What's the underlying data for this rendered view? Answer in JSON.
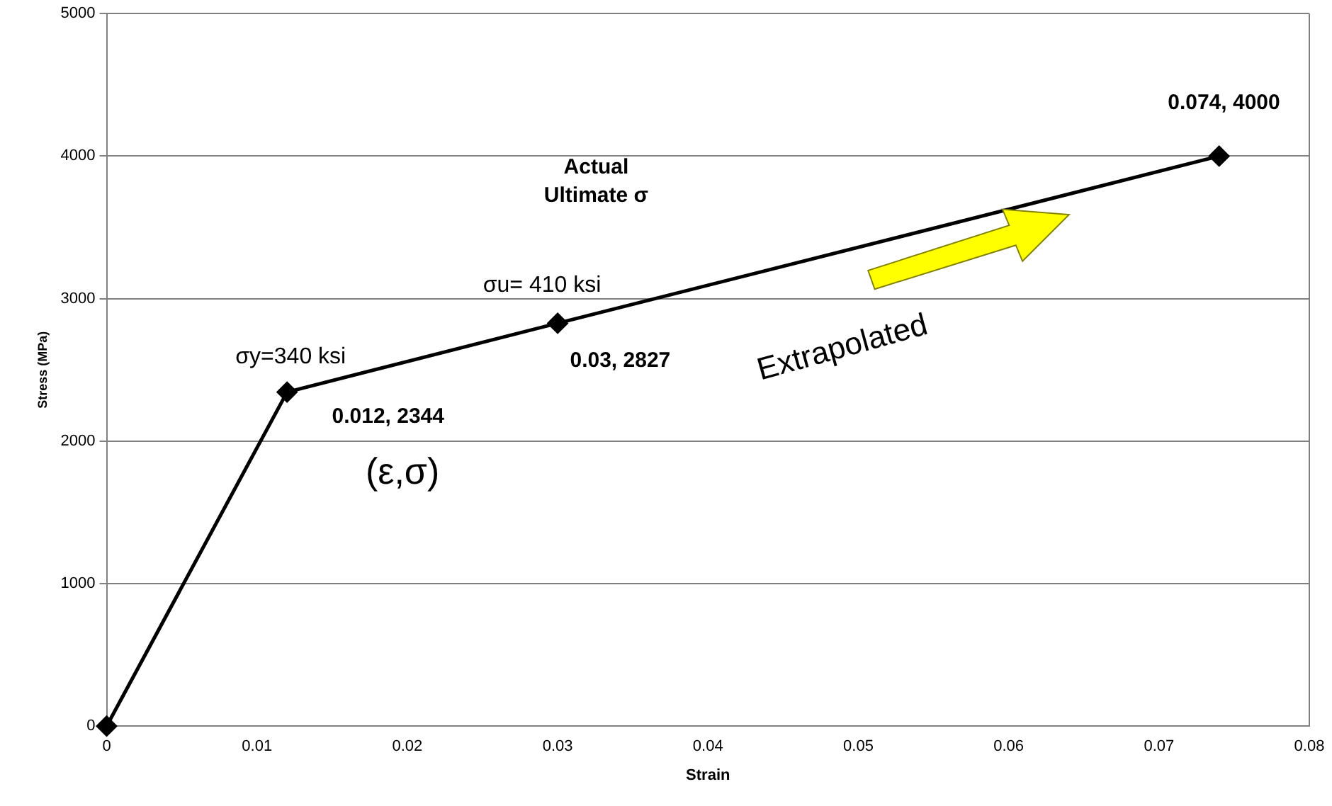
{
  "chart_data": {
    "type": "line",
    "xlabel": "Strain",
    "ylabel": "Stress (MPa)",
    "x": [
      0,
      0.012,
      0.03,
      0.074
    ],
    "series": [
      {
        "color": "#000000",
        "values": [
          0,
          2344,
          2827,
          4000
        ]
      }
    ],
    "xlim": [
      0,
      0.08
    ],
    "xticks": [
      0,
      0.01,
      0.02,
      0.03,
      0.04,
      0.05,
      0.06,
      0.07,
      0.08
    ],
    "ylim": [
      0,
      5000
    ],
    "yticks": [
      0,
      1000,
      2000,
      3000,
      4000,
      5000
    ],
    "grid": "y",
    "legend": false,
    "marker": "diamond",
    "line_style": "solid",
    "annotations": [
      "0.012, 2344",
      "0.03, 2827",
      "0.074, 4000",
      "σy=340 ksi",
      "σu= 410 ksi",
      "Actual\nUltimate σ",
      "(ε,σ)",
      "Extrapolated"
    ]
  }
}
